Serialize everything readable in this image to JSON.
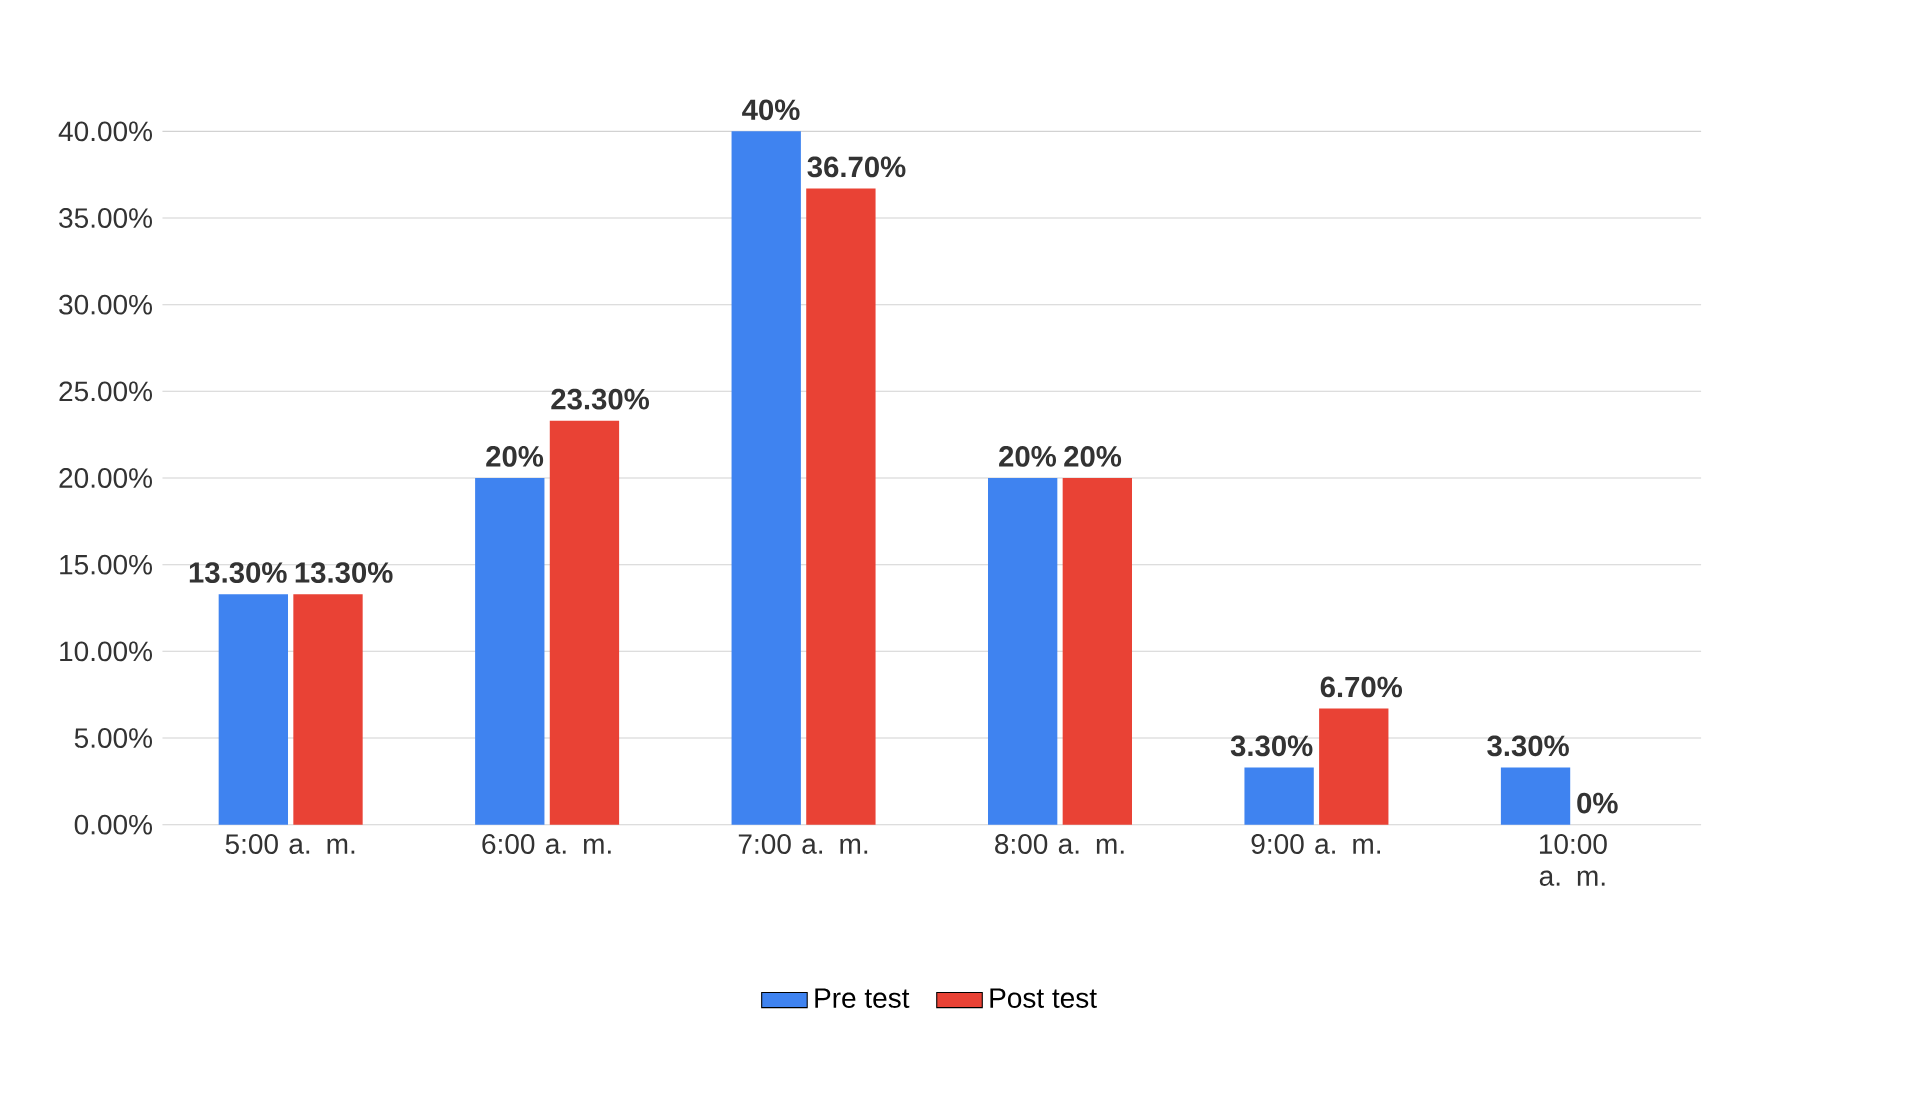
{
  "chart_data": {
    "type": "bar",
    "categories": [
      "5:00 a. m.",
      "6:00 a. m.",
      "7:00 a. m.",
      "8:00 a. m.",
      "9:00 a. m.",
      "10:00 a. m."
    ],
    "series": [
      {
        "name": "Pre test",
        "color": "#3f83f0",
        "values": [
          13.3,
          20,
          40,
          20,
          3.3,
          3.3
        ],
        "value_labels": [
          "13.30%",
          "20%",
          "40%",
          "20%",
          "3.30%",
          "3.30%"
        ]
      },
      {
        "name": "Post test",
        "color": "#e94235",
        "values": [
          13.3,
          23.3,
          36.7,
          20,
          6.7,
          0
        ],
        "value_labels": [
          "13.30%",
          "23.30%",
          "36.70%",
          "20%",
          "6.70%",
          "0%"
        ]
      }
    ],
    "ylim": [
      0,
      40
    ],
    "yticks": [
      {
        "value": 0,
        "label": "0.00%"
      },
      {
        "value": 5,
        "label": "5.00%"
      },
      {
        "value": 10,
        "label": "10.00%"
      },
      {
        "value": 15,
        "label": "15.00%"
      },
      {
        "value": 20,
        "label": "20.00%"
      },
      {
        "value": 25,
        "label": "25.00%"
      },
      {
        "value": 30,
        "label": "30.00%"
      },
      {
        "value": 35,
        "label": "35.00%"
      },
      {
        "value": 40,
        "label": "40.00%"
      }
    ],
    "grid": "y",
    "legend": "bottom"
  }
}
